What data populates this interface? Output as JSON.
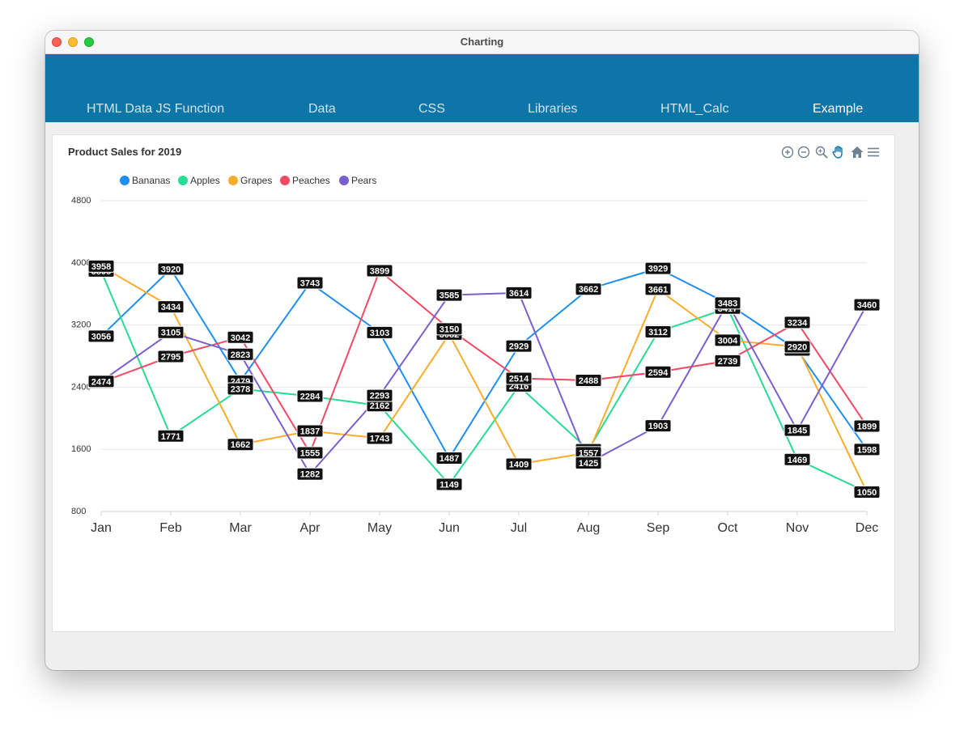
{
  "window": {
    "title": "Charting"
  },
  "nav": {
    "tabs": [
      {
        "label": "HTML Data JS Function",
        "active": false
      },
      {
        "label": "Data",
        "active": false
      },
      {
        "label": "CSS",
        "active": false
      },
      {
        "label": "Libraries",
        "active": false
      },
      {
        "label": "HTML_Calc",
        "active": false
      },
      {
        "label": "Example",
        "active": true
      }
    ]
  },
  "toolbar": {
    "icons": [
      "zoom-in-icon",
      "zoom-out-icon",
      "selection-zoom-icon",
      "pan-icon",
      "reset-home-icon",
      "menu-icon"
    ],
    "active_color": "#0e75a8",
    "icon_color": "#6e8192"
  },
  "chart_data": {
    "type": "line",
    "title": "Product Sales for 2019",
    "categories": [
      "Jan",
      "Feb",
      "Mar",
      "Apr",
      "May",
      "Jun",
      "Jul",
      "Aug",
      "Sep",
      "Oct",
      "Nov",
      "Dec"
    ],
    "yticks": [
      "4800",
      "4000",
      "3200",
      "2400",
      "1600",
      "800"
    ],
    "ylim": [
      800,
      4800
    ],
    "grid": true,
    "legend_position": "top-left",
    "series": [
      {
        "name": "Bananas",
        "color": "#1e8ff0",
        "values": [
          3056,
          3920,
          2479,
          3743,
          3103,
          1487,
          2929,
          3662,
          3929,
          3476,
          2878,
          1598
        ]
      },
      {
        "name": "Apples",
        "color": "#27db93",
        "values": [
          3895,
          1771,
          2378,
          2284,
          2162,
          1149,
          2416,
          1595,
          3112,
          3417,
          1469,
          1050
        ]
      },
      {
        "name": "Grapes",
        "color": "#f8ad2a",
        "values": [
          3958,
          3434,
          1662,
          1837,
          1743,
          3082,
          1409,
          1557,
          3661,
          3004,
          2920,
          1050
        ]
      },
      {
        "name": "Peaches",
        "color": "#f04a64",
        "values": [
          2463,
          2795,
          3042,
          1555,
          3899,
          3150,
          2514,
          2488,
          2594,
          2739,
          3234,
          1899
        ]
      },
      {
        "name": "Pears",
        "color": "#7b5fcf",
        "values": [
          2474,
          3105,
          2823,
          1282,
          2293,
          3585,
          3614,
          1425,
          1903,
          3483,
          1845,
          3460
        ]
      }
    ]
  }
}
